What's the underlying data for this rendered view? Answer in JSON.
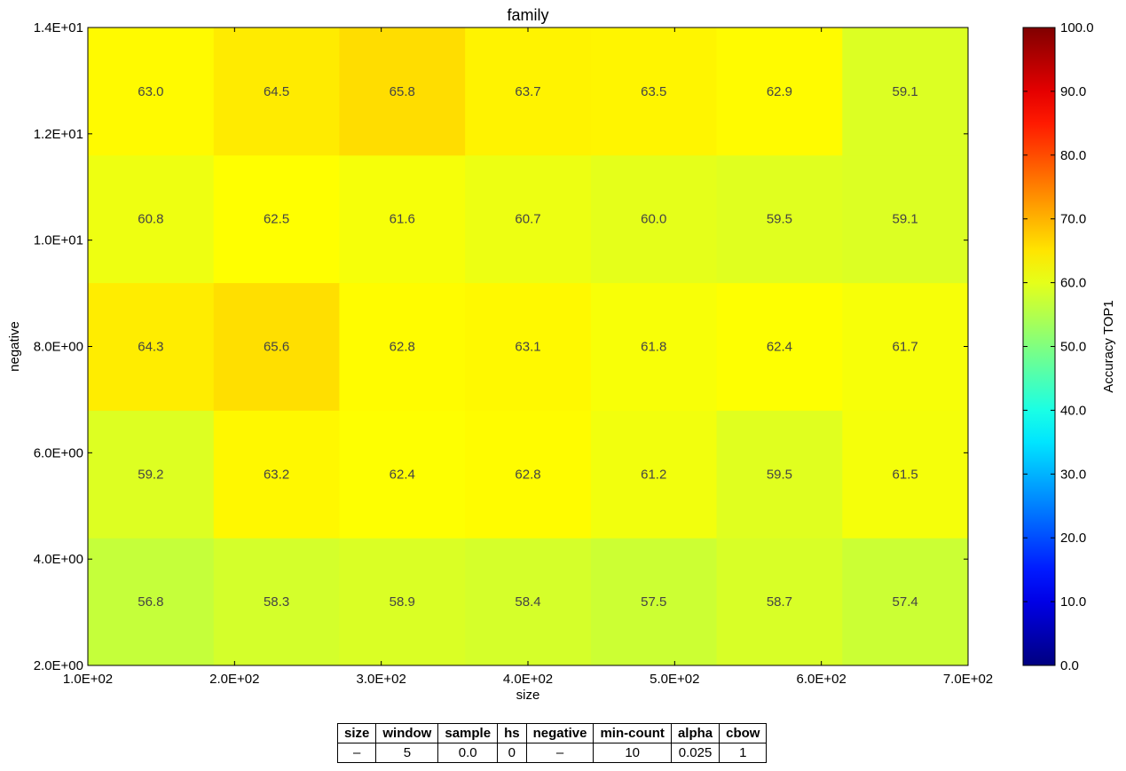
{
  "chart_data": {
    "type": "heatmap",
    "title": "family",
    "xlabel": "size",
    "ylabel": "negative",
    "x_ticks": [
      "1.0E+02",
      "2.0E+02",
      "3.0E+02",
      "4.0E+02",
      "5.0E+02",
      "6.0E+02",
      "7.0E+02"
    ],
    "y_ticks": [
      "2.0E+00",
      "4.0E+00",
      "6.0E+00",
      "8.0E+00",
      "1.0E+01",
      "1.2E+01",
      "1.4E+01"
    ],
    "xlim": [
      100,
      700
    ],
    "ylim": [
      2,
      14
    ],
    "rows": [
      {
        "values": [
          56.8,
          58.3,
          58.9,
          58.4,
          57.5,
          58.7,
          57.4
        ]
      },
      {
        "values": [
          59.2,
          63.2,
          62.4,
          62.8,
          61.2,
          59.5,
          61.5
        ]
      },
      {
        "values": [
          64.3,
          65.6,
          62.8,
          63.1,
          61.8,
          62.4,
          61.7
        ]
      },
      {
        "values": [
          60.8,
          62.5,
          61.6,
          60.7,
          60.0,
          59.5,
          59.1
        ]
      },
      {
        "values": [
          63.0,
          64.5,
          65.8,
          63.7,
          63.5,
          62.9,
          59.1
        ]
      }
    ],
    "colorbar": {
      "label": "Accuracy TOP1",
      "min": 0,
      "max": 100,
      "colormap": "jet",
      "ticks": [
        "0.0",
        "10.0",
        "20.0",
        "30.0",
        "40.0",
        "50.0",
        "60.0",
        "70.0",
        "80.0",
        "90.0",
        "100.0"
      ]
    }
  },
  "params_table": {
    "headers": [
      "size",
      "window",
      "sample",
      "hs",
      "negative",
      "min-count",
      "alpha",
      "cbow"
    ],
    "values": [
      "–",
      "5",
      "0.0",
      "0",
      "–",
      "10",
      "0.025",
      "1"
    ]
  }
}
